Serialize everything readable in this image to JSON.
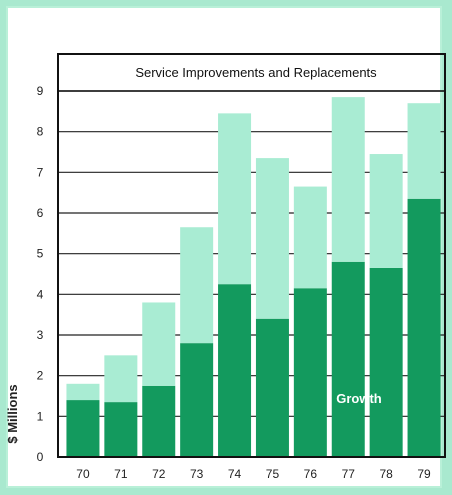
{
  "chart_data": {
    "type": "bar",
    "stacked": true,
    "categories": [
      "70",
      "71",
      "72",
      "73",
      "74",
      "75",
      "76",
      "77",
      "78",
      "79"
    ],
    "series": [
      {
        "name": "Growth",
        "color": "#139a5e",
        "values": [
          1.4,
          1.35,
          1.75,
          2.8,
          4.25,
          3.4,
          4.15,
          4.8,
          4.65,
          6.35
        ]
      },
      {
        "name": "Service Improvements and Replacements",
        "color": "#a9ecd3",
        "values": [
          0.4,
          1.15,
          2.05,
          2.85,
          4.2,
          3.95,
          2.5,
          4.05,
          2.8,
          2.35
        ]
      }
    ],
    "title": "Service Improvements and Replacements",
    "annotation": "Growth",
    "xlabel": "",
    "ylabel": "$ Millions",
    "ylim": [
      0,
      9
    ],
    "yticks": [
      "0",
      "1",
      "2",
      "3",
      "4",
      "5",
      "6",
      "7",
      "8",
      "9"
    ],
    "grid": true
  }
}
